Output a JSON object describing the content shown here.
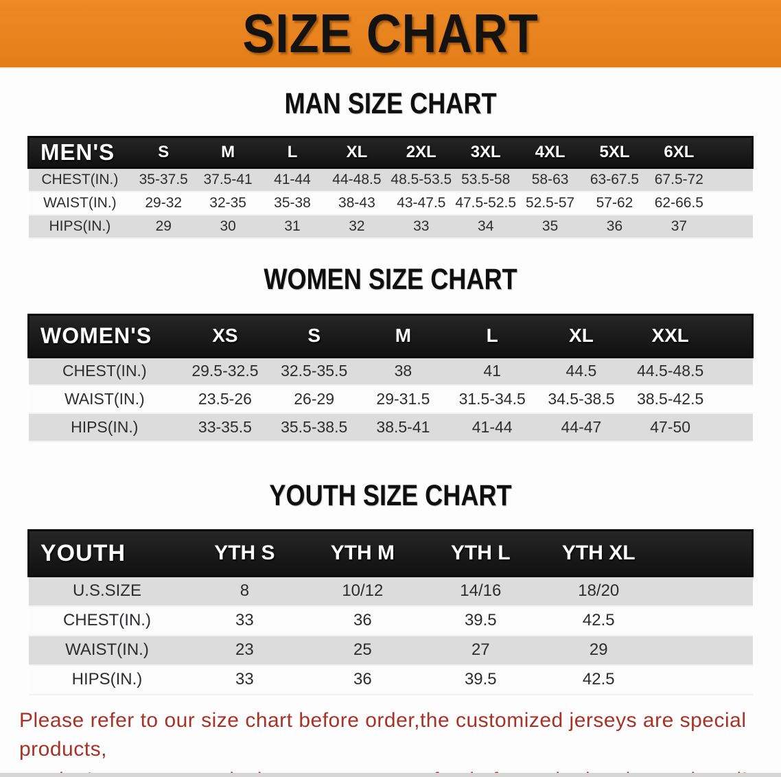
{
  "banner": {
    "title": "SIZE CHART",
    "background_color": "#e7821e",
    "text_color": "#151310"
  },
  "sections": [
    {
      "heading": "MAN SIZE CHART",
      "table": {
        "header_label": "MEN'S",
        "columns": [
          "S",
          "M",
          "L",
          "XL",
          "2XL",
          "3XL",
          "4XL",
          "5XL",
          "6XL"
        ],
        "rows": [
          {
            "label": "CHEST(IN.)",
            "values": [
              "35-37.5",
              "37.5-41",
              "41-44",
              "44-48.5",
              "48.5-53.5",
              "53.5-58",
              "58-63",
              "63-67.5",
              "67.5-72"
            ]
          },
          {
            "label": "WAIST(IN.)",
            "values": [
              "29-32",
              "32-35",
              "35-38",
              "38-43",
              "43-47.5",
              "47.5-52.5",
              "52.5-57",
              "57-62",
              "62-66.5"
            ]
          },
          {
            "label": "HIPS(IN.)",
            "values": [
              "29",
              "30",
              "31",
              "32",
              "33",
              "34",
              "35",
              "36",
              "37"
            ]
          }
        ]
      }
    },
    {
      "heading": "WOMEN SIZE CHART",
      "table": {
        "header_label": "WOMEN'S",
        "columns": [
          "XS",
          "S",
          "M",
          "L",
          "XL",
          "XXL"
        ],
        "rows": [
          {
            "label": "CHEST(IN.)",
            "values": [
              "29.5-32.5",
              "32.5-35.5",
              "38",
              "41",
              "44.5",
              "44.5-48.5"
            ]
          },
          {
            "label": "WAIST(IN.)",
            "values": [
              "23.5-26",
              "26-29",
              "29-31.5",
              "31.5-34.5",
              "34.5-38.5",
              "38.5-42.5"
            ]
          },
          {
            "label": "HIPS(IN.)",
            "values": [
              "33-35.5",
              "35.5-38.5",
              "38.5-41",
              "41-44",
              "44-47",
              "47-50"
            ]
          }
        ]
      }
    },
    {
      "heading": "YOUTH SIZE CHART",
      "table": {
        "header_label": "YOUTH",
        "columns": [
          "YTH S",
          "YTH M",
          "YTH L",
          "YTH XL"
        ],
        "rows": [
          {
            "label": "U.S.SIZE",
            "values": [
              "8",
              "10/12",
              "14/16",
              "18/20"
            ]
          },
          {
            "label": "CHEST(IN.)",
            "values": [
              "33",
              "36",
              "39.5",
              "42.5"
            ]
          },
          {
            "label": "WAIST(IN.)",
            "values": [
              "23",
              "25",
              "27",
              "29"
            ]
          },
          {
            "label": "HIPS(IN.)",
            "values": [
              "33",
              "36",
              "39.5",
              "42.5"
            ]
          }
        ]
      }
    }
  ],
  "footer": {
    "line1": "Please refer to our size chart before order,the customized jerseys are special products,",
    "line2": "we don't accept cancel, change, teturn or refund after order has been placed!",
    "text_color": "#a93226"
  }
}
